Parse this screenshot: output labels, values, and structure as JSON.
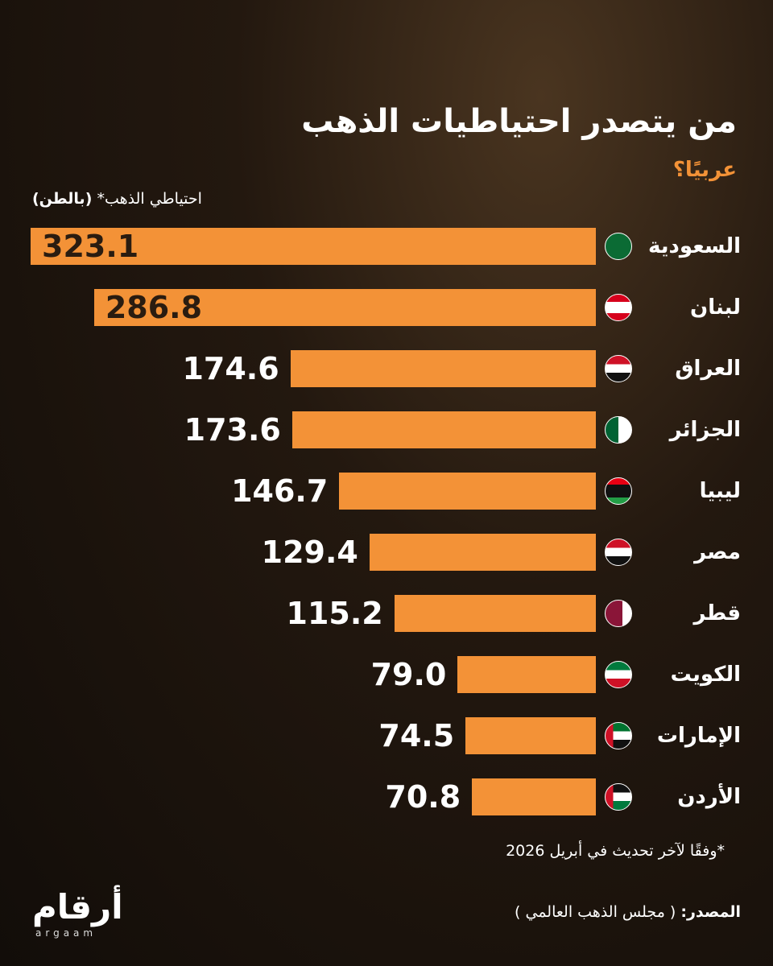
{
  "chart_data": {
    "type": "bar",
    "orientation": "horizontal",
    "title": "من يتصدر احتياطيات الذهب",
    "subtitle": "عربيًا؟",
    "axis_label": "احتياطي الذهب*",
    "axis_unit": "(بالطن)",
    "categories": [
      "السعودية",
      "لبنان",
      "العراق",
      "الجزائر",
      "ليبيا",
      "مصر",
      "قطر",
      "الكويت",
      "الإمارات",
      "الأردن"
    ],
    "values": [
      323.1,
      286.8,
      174.6,
      173.6,
      146.7,
      129.4,
      115.2,
      79,
      74.5,
      70.8
    ],
    "value_labels": [
      "323.1",
      "286.8",
      "174.6",
      "173.6",
      "146.7",
      "129.4",
      "115.2",
      "79.0",
      "74.5",
      "70.8"
    ],
    "color": "#f39237",
    "footnote": "*وفقًا لآخر تحديث في أبريل 2026",
    "source_label": "المصدر:",
    "source": "( مجلس الذهب العالمي )",
    "logo": "أرقام",
    "logo_sub": "argaam"
  }
}
